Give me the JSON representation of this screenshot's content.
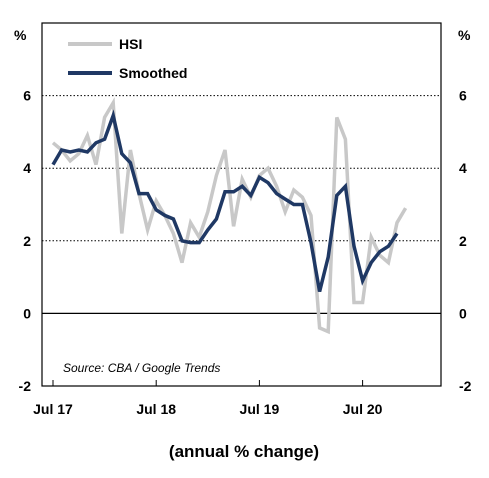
{
  "chart_data": {
    "type": "line",
    "title": "",
    "xlabel": "(annual % change)",
    "y_unit_left": "%",
    "y_unit_right": "%",
    "ylim": [
      -2,
      8
    ],
    "yticks": [
      -2,
      0,
      2,
      4,
      6
    ],
    "yticks_dotted_grid": [
      2,
      4,
      6
    ],
    "x_start_month": "Jul 17",
    "x_end_month": "Mar 21",
    "xticks": [
      {
        "label": "Jul 17",
        "month_index": 0
      },
      {
        "label": "Jul 18",
        "month_index": 12
      },
      {
        "label": "Jul 19",
        "month_index": 24
      },
      {
        "label": "Jul 20",
        "month_index": 36
      }
    ],
    "legend_position": "top-left",
    "source_note": "Source: CBA / Google Trends",
    "series": [
      {
        "name": "HSI",
        "color": "#c8c8c8",
        "values": [
          4.7,
          4.5,
          4.2,
          4.4,
          4.9,
          4.1,
          5.4,
          5.8,
          2.2,
          4.5,
          3.3,
          2.3,
          3.1,
          2.7,
          2.2,
          1.4,
          2.5,
          2.1,
          2.8,
          3.8,
          4.5,
          2.4,
          3.7,
          3.2,
          3.8,
          4.0,
          3.5,
          2.8,
          3.4,
          3.2,
          2.7,
          -0.4,
          -0.5,
          5.4,
          4.8,
          0.3,
          0.3,
          2.1,
          1.6,
          1.4,
          2.5,
          2.9
        ]
      },
      {
        "name": "Smoothed",
        "color": "#1f3864",
        "values": [
          4.1,
          4.5,
          4.45,
          4.5,
          4.45,
          4.7,
          4.8,
          5.45,
          4.4,
          4.15,
          3.3,
          3.3,
          2.85,
          2.7,
          2.6,
          2.0,
          1.95,
          1.95,
          2.3,
          2.6,
          3.35,
          3.35,
          3.5,
          3.25,
          3.75,
          3.6,
          3.3,
          3.15,
          3.0,
          3.0,
          1.95,
          0.6,
          1.55,
          3.25,
          3.5,
          1.85,
          0.9,
          1.4,
          1.7,
          1.85,
          2.2
        ]
      }
    ]
  }
}
